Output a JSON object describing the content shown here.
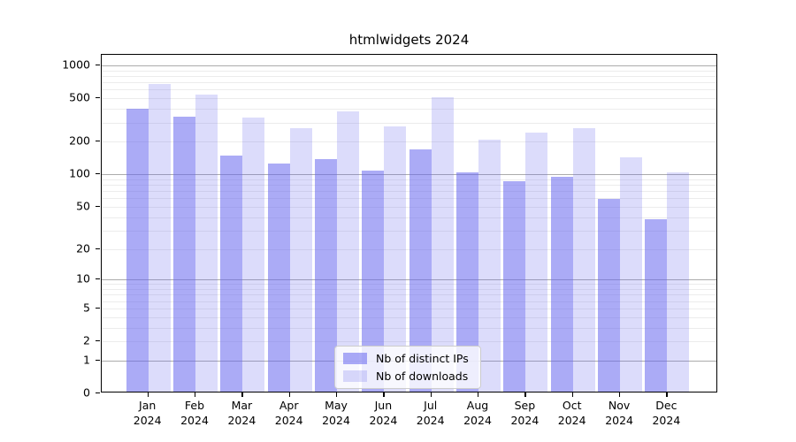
{
  "title": "htmlwidgets 2024",
  "colors": {
    "bar_distinct_ips": "rgba(102,102,238,0.55)",
    "bar_downloads": "rgba(102,102,238,0.23)",
    "grid_major": "#ababab",
    "grid_minor": "#ececec",
    "axis": "#000000",
    "legend_border": "#cccccc"
  },
  "legend": {
    "position": "lower-center",
    "items": [
      {
        "label": "Nb of distinct IPs",
        "color_key": "bar_distinct_ips"
      },
      {
        "label": "Nb of downloads",
        "color_key": "bar_downloads"
      }
    ]
  },
  "chart_data": {
    "type": "bar",
    "title": "htmlwidgets 2024",
    "xlabel": "",
    "ylabel": "",
    "year": "2024",
    "months": [
      "Jan",
      "Feb",
      "Mar",
      "Apr",
      "May",
      "Jun",
      "Jul",
      "Aug",
      "Sep",
      "Oct",
      "Nov",
      "Dec"
    ],
    "categories": [
      "Jan 2024",
      "Feb 2024",
      "Mar 2024",
      "Apr 2024",
      "May 2024",
      "Jun 2024",
      "Jul 2024",
      "Aug 2024",
      "Sep 2024",
      "Oct 2024",
      "Nov 2024",
      "Dec 2024"
    ],
    "series": [
      {
        "name": "Nb of distinct IPs",
        "values": [
          388,
          324,
          143,
          121,
          133,
          104,
          163,
          100,
          83,
          92,
          57,
          37
        ]
      },
      {
        "name": "Nb of downloads",
        "values": [
          650,
          518,
          320,
          255,
          363,
          265,
          490,
          200,
          233,
          255,
          138,
          100
        ]
      }
    ],
    "y_scale": "log1p",
    "ylim": [
      0,
      1250
    ],
    "y_ticks": [
      1000,
      500,
      200,
      100,
      50,
      20,
      10,
      5,
      2,
      1,
      0
    ],
    "y_major_gridlines": [
      1,
      10,
      100,
      1000
    ],
    "grid": "on",
    "legend_position": "lower-center"
  }
}
